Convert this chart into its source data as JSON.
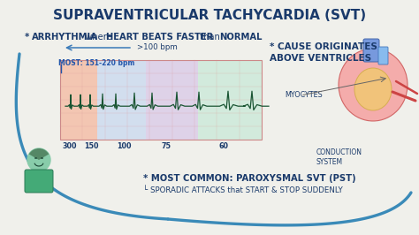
{
  "title": "SUPRAVENTRICULAR TACHYCARDIA (SVT)",
  "title_color": "#1a3a6b",
  "bg_color": "#f0f0eb",
  "bpm_label": ">100 bpm",
  "most_label": "MOST: 151-220 bpm",
  "cause_line1": "* CAUSE ORIGINATES",
  "cause_line2": "ABOVE VENTRICLES",
  "ecg_labels": [
    "300",
    "150",
    "100",
    "75",
    "60"
  ],
  "myocytes_label": "MYOCYTES",
  "conduction_label": "CONDUCTION\nSYSTEM",
  "bottom_line1": "* MOST COMMON: PAROXYSMAL SVT (PST)",
  "bottom_line2": "└ SPORADIC ATTACKS that START & STOP SUDDENLY",
  "ecg_bg_colors": [
    "#f5b8a0",
    "#c8d8f0",
    "#d8c8e8",
    "#c8e8d8"
  ],
  "text_dark_blue": "#1a3a6b",
  "arrow_color": "#3a7ab8",
  "ecg_line_color": "#1a5533",
  "curve_color": "#3a8ab8",
  "nurse_skin": "#88ccaa",
  "nurse_body": "#44aa77",
  "heart_color": "#f5a0a0",
  "heart_inner": "#f0d060",
  "aorta_color": "#7799dd"
}
